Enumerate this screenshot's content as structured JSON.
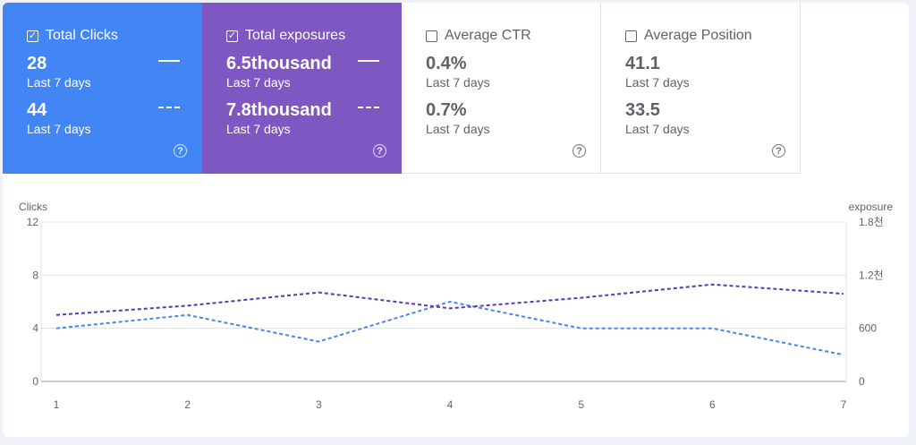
{
  "cards": [
    {
      "label": "Total Clicks",
      "checked": true,
      "value1": "28",
      "period1": "Last 7 days",
      "value2": "44",
      "period2": "Last 7 days",
      "color": "#4285f4"
    },
    {
      "label": "Total exposures",
      "checked": true,
      "value1": "6.5thousand",
      "period1": "Last 7 days",
      "value2": "7.8thousand",
      "period2": "Last 7 days",
      "color": "#7e57c2"
    },
    {
      "label": "Average CTR",
      "checked": false,
      "value1": "0.4%",
      "period1": "Last 7 days",
      "value2": "0.7%",
      "period2": "Last 7 days"
    },
    {
      "label": "Average Position",
      "checked": false,
      "value1": "41.1",
      "period1": "Last 7 days",
      "value2": "33.5",
      "period2": "Last 7 days"
    }
  ],
  "icons": {
    "checkbox": "checkbox-icon",
    "help": "help-circle-icon"
  },
  "chart_data": {
    "type": "line",
    "x": [
      1,
      2,
      3,
      4,
      5,
      6,
      7
    ],
    "left_axis": {
      "label": "Clicks",
      "ylim": [
        0,
        12
      ],
      "ticks": [
        "0",
        "4",
        "8",
        "12"
      ]
    },
    "right_axis": {
      "label": "exposure",
      "ylim": [
        0,
        1800
      ],
      "ticks": [
        "0",
        "600",
        "1.2천",
        "1.8천"
      ]
    },
    "series": [
      {
        "name": "Total Clicks",
        "axis": "left",
        "color": "#4285f4",
        "dash": "dashed",
        "values": [
          4,
          5,
          3,
          6,
          4,
          4,
          2
        ]
      },
      {
        "name": "Total exposures",
        "axis": "right",
        "color": "#5e35b1",
        "dash": "dashed",
        "values": [
          750,
          855,
          1005,
          825,
          945,
          1095,
          990
        ]
      }
    ],
    "grid": true
  }
}
